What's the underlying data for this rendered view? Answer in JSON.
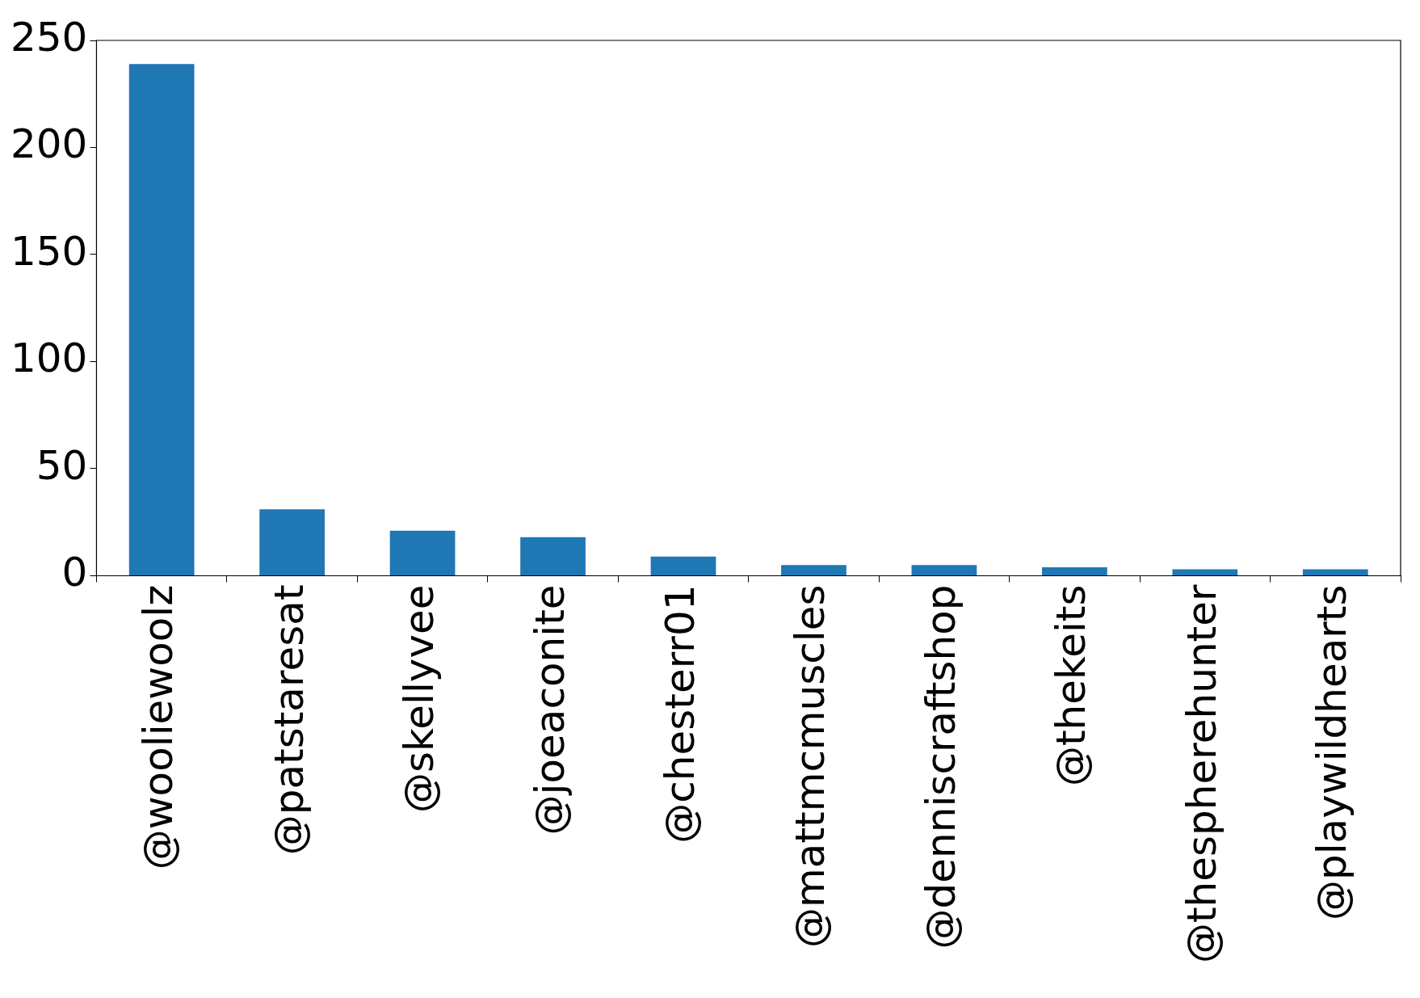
{
  "chart_data": {
    "type": "bar",
    "categories": [
      "@wooliewoolz",
      "@patstaresat",
      "@skellyvee",
      "@joeaconite",
      "@chesterr01",
      "@mattmcmuscles",
      "@denniscraftshop",
      "@thekeits",
      "@thespherehunter",
      "@playwildhearts"
    ],
    "values": [
      239,
      31,
      21,
      18,
      9,
      5,
      5,
      4,
      3,
      3
    ],
    "color": "#1f77b4",
    "ylim": [
      0,
      250
    ],
    "yticks": [
      0,
      50,
      100,
      150,
      200,
      250
    ],
    "grid": false,
    "legend": false
  }
}
